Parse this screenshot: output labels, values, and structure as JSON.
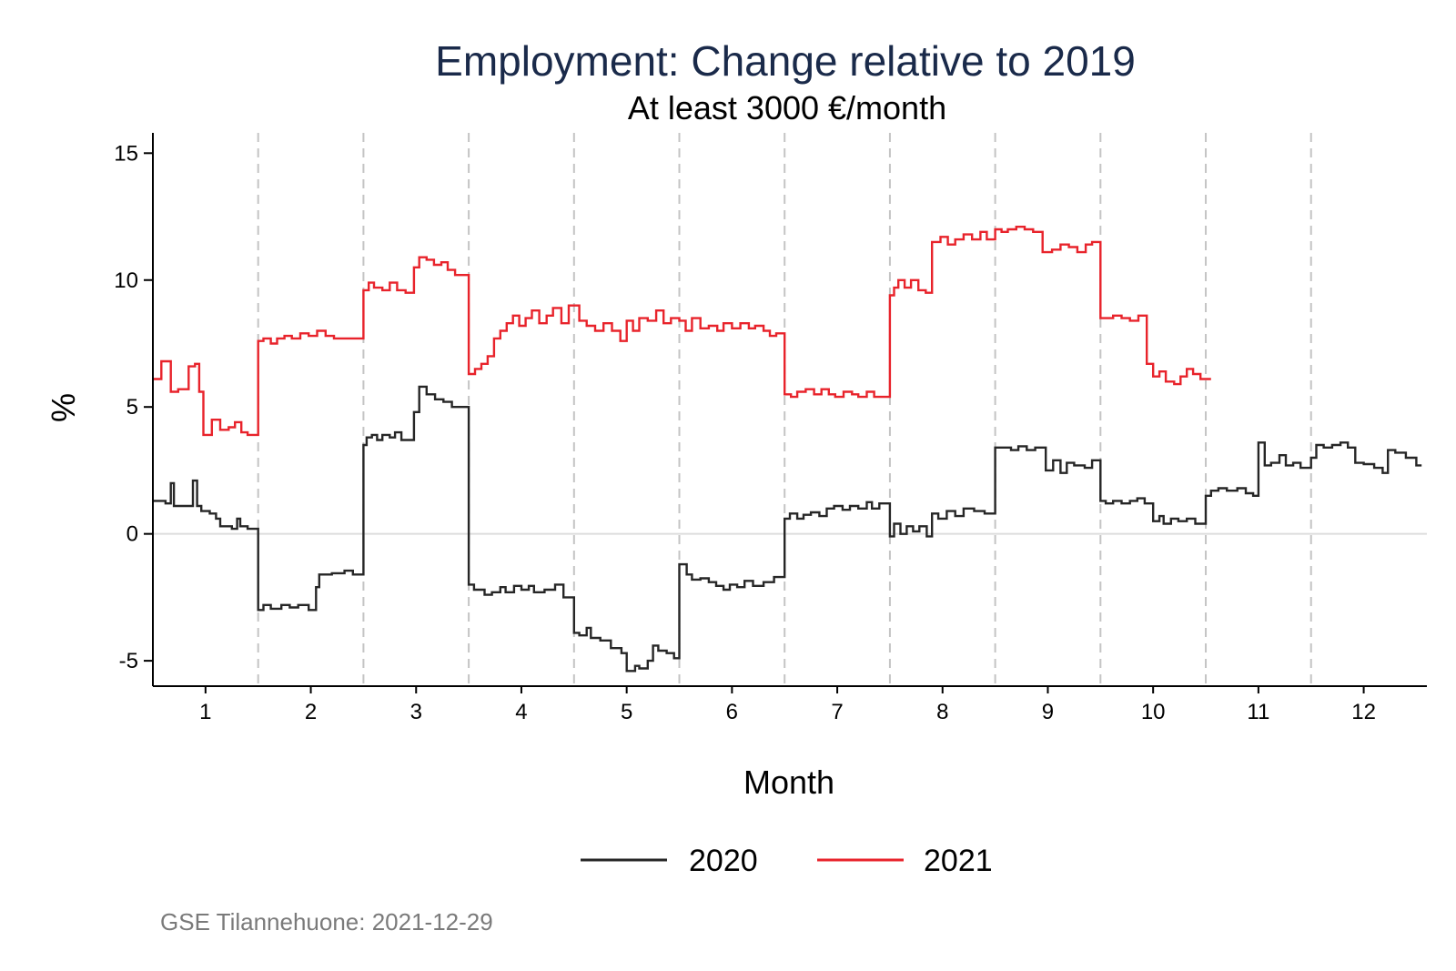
{
  "chart_data": {
    "type": "line",
    "title": "Employment: Change relative to 2019",
    "subtitle": "At least 3000 €/month",
    "xlabel": "Month",
    "ylabel": "%",
    "xlim": [
      0.5,
      12.6
    ],
    "ylim": [
      -6,
      15.8
    ],
    "x_ticks": [
      1,
      2,
      3,
      4,
      5,
      6,
      7,
      8,
      9,
      10,
      11,
      12
    ],
    "y_ticks": [
      15,
      10,
      5,
      0,
      -5
    ],
    "y_tick_labels": [
      "15",
      "10",
      "5",
      "0",
      "-5"
    ],
    "month_separators": [
      1.5,
      2.5,
      3.5,
      4.5,
      5.5,
      6.5,
      7.5,
      8.5,
      9.5,
      10.5,
      11.5
    ],
    "zero_line": 0,
    "legend": {
      "position": "bottom",
      "entries": [
        "2020",
        "2021"
      ]
    },
    "note": "GSE Tilannehuone: 2021-12-29",
    "series": [
      {
        "name": "2020",
        "color": "#262626",
        "step": "post",
        "points": [
          [
            0.5,
            1.3
          ],
          [
            0.62,
            1.2
          ],
          [
            0.67,
            2.0
          ],
          [
            0.7,
            1.1
          ],
          [
            0.8,
            1.1
          ],
          [
            0.88,
            2.1
          ],
          [
            0.92,
            1.1
          ],
          [
            0.96,
            0.9
          ],
          [
            1.04,
            0.8
          ],
          [
            1.1,
            0.6
          ],
          [
            1.14,
            0.3
          ],
          [
            1.25,
            0.2
          ],
          [
            1.3,
            0.6
          ],
          [
            1.33,
            0.3
          ],
          [
            1.4,
            0.2
          ],
          [
            1.5,
            -3.0
          ],
          [
            1.55,
            -2.8
          ],
          [
            1.62,
            -2.95
          ],
          [
            1.72,
            -2.8
          ],
          [
            1.8,
            -2.9
          ],
          [
            1.88,
            -2.8
          ],
          [
            1.98,
            -3.0
          ],
          [
            2.05,
            -2.1
          ],
          [
            2.08,
            -1.6
          ],
          [
            2.2,
            -1.55
          ],
          [
            2.32,
            -1.45
          ],
          [
            2.4,
            -1.6
          ],
          [
            2.5,
            3.5
          ],
          [
            2.53,
            3.8
          ],
          [
            2.58,
            3.9
          ],
          [
            2.63,
            3.7
          ],
          [
            2.68,
            3.9
          ],
          [
            2.75,
            3.8
          ],
          [
            2.8,
            4.0
          ],
          [
            2.86,
            3.7
          ],
          [
            2.98,
            4.8
          ],
          [
            3.03,
            5.8
          ],
          [
            3.1,
            5.5
          ],
          [
            3.18,
            5.3
          ],
          [
            3.26,
            5.2
          ],
          [
            3.34,
            5.0
          ],
          [
            3.5,
            -2.0
          ],
          [
            3.55,
            -2.2
          ],
          [
            3.65,
            -2.4
          ],
          [
            3.72,
            -2.3
          ],
          [
            3.8,
            -2.1
          ],
          [
            3.85,
            -2.3
          ],
          [
            3.93,
            -2.05
          ],
          [
            4.0,
            -2.2
          ],
          [
            4.07,
            -2.05
          ],
          [
            4.12,
            -2.3
          ],
          [
            4.22,
            -2.2
          ],
          [
            4.32,
            -2.0
          ],
          [
            4.4,
            -2.5
          ],
          [
            4.5,
            -3.9
          ],
          [
            4.55,
            -4.0
          ],
          [
            4.62,
            -3.7
          ],
          [
            4.66,
            -4.1
          ],
          [
            4.75,
            -4.2
          ],
          [
            4.85,
            -4.5
          ],
          [
            4.95,
            -4.7
          ],
          [
            5.0,
            -5.4
          ],
          [
            5.08,
            -5.2
          ],
          [
            5.12,
            -5.3
          ],
          [
            5.2,
            -5.0
          ],
          [
            5.25,
            -4.4
          ],
          [
            5.3,
            -4.6
          ],
          [
            5.38,
            -4.7
          ],
          [
            5.45,
            -4.9
          ],
          [
            5.5,
            -1.2
          ],
          [
            5.57,
            -1.6
          ],
          [
            5.62,
            -1.8
          ],
          [
            5.7,
            -1.75
          ],
          [
            5.78,
            -1.9
          ],
          [
            5.85,
            -2.05
          ],
          [
            5.92,
            -2.2
          ],
          [
            5.98,
            -2.0
          ],
          [
            6.05,
            -2.1
          ],
          [
            6.12,
            -1.85
          ],
          [
            6.2,
            -2.05
          ],
          [
            6.3,
            -1.9
          ],
          [
            6.4,
            -1.7
          ],
          [
            6.5,
            0.6
          ],
          [
            6.55,
            0.8
          ],
          [
            6.62,
            0.6
          ],
          [
            6.68,
            0.75
          ],
          [
            6.75,
            0.85
          ],
          [
            6.83,
            0.7
          ],
          [
            6.9,
            1.0
          ],
          [
            6.97,
            1.1
          ],
          [
            7.05,
            0.95
          ],
          [
            7.12,
            1.1
          ],
          [
            7.2,
            1.0
          ],
          [
            7.28,
            1.25
          ],
          [
            7.33,
            1.0
          ],
          [
            7.4,
            1.2
          ],
          [
            7.5,
            -0.1
          ],
          [
            7.54,
            0.4
          ],
          [
            7.6,
            0.0
          ],
          [
            7.66,
            0.3
          ],
          [
            7.72,
            0.1
          ],
          [
            7.78,
            0.3
          ],
          [
            7.85,
            -0.1
          ],
          [
            7.9,
            0.8
          ],
          [
            7.96,
            0.6
          ],
          [
            8.04,
            0.9
          ],
          [
            8.12,
            0.7
          ],
          [
            8.2,
            1.0
          ],
          [
            8.3,
            0.9
          ],
          [
            8.4,
            0.8
          ],
          [
            8.5,
            3.4
          ],
          [
            8.58,
            3.4
          ],
          [
            8.65,
            3.3
          ],
          [
            8.72,
            3.45
          ],
          [
            8.8,
            3.3
          ],
          [
            8.88,
            3.4
          ],
          [
            8.98,
            2.5
          ],
          [
            9.05,
            2.9
          ],
          [
            9.12,
            2.4
          ],
          [
            9.18,
            2.8
          ],
          [
            9.25,
            2.7
          ],
          [
            9.35,
            2.6
          ],
          [
            9.42,
            2.9
          ],
          [
            9.5,
            1.3
          ],
          [
            9.55,
            1.2
          ],
          [
            9.62,
            1.3
          ],
          [
            9.7,
            1.2
          ],
          [
            9.78,
            1.3
          ],
          [
            9.85,
            1.4
          ],
          [
            9.92,
            1.2
          ],
          [
            10.0,
            0.5
          ],
          [
            10.06,
            0.7
          ],
          [
            10.1,
            0.4
          ],
          [
            10.17,
            0.6
          ],
          [
            10.24,
            0.5
          ],
          [
            10.32,
            0.6
          ],
          [
            10.4,
            0.4
          ],
          [
            10.5,
            1.5
          ],
          [
            10.55,
            1.7
          ],
          [
            10.62,
            1.8
          ],
          [
            10.7,
            1.7
          ],
          [
            10.8,
            1.8
          ],
          [
            10.88,
            1.6
          ],
          [
            10.95,
            1.5
          ],
          [
            11.0,
            3.6
          ],
          [
            11.06,
            2.7
          ],
          [
            11.12,
            2.8
          ],
          [
            11.2,
            3.1
          ],
          [
            11.26,
            2.7
          ],
          [
            11.33,
            2.8
          ],
          [
            11.4,
            2.6
          ],
          [
            11.5,
            3.0
          ],
          [
            11.55,
            3.5
          ],
          [
            11.62,
            3.4
          ],
          [
            11.7,
            3.5
          ],
          [
            11.78,
            3.6
          ],
          [
            11.85,
            3.4
          ],
          [
            11.92,
            2.8
          ],
          [
            12.0,
            2.75
          ],
          [
            12.1,
            2.6
          ],
          [
            12.18,
            2.4
          ],
          [
            12.23,
            3.3
          ],
          [
            12.3,
            3.2
          ],
          [
            12.4,
            3.0
          ],
          [
            12.5,
            2.7
          ]
        ]
      },
      {
        "name": "2021",
        "color": "#e8232b",
        "step": "post",
        "points": [
          [
            0.5,
            6.1
          ],
          [
            0.58,
            6.8
          ],
          [
            0.67,
            5.6
          ],
          [
            0.74,
            5.7
          ],
          [
            0.84,
            6.6
          ],
          [
            0.9,
            6.7
          ],
          [
            0.94,
            5.6
          ],
          [
            0.98,
            3.9
          ],
          [
            1.06,
            4.5
          ],
          [
            1.14,
            4.1
          ],
          [
            1.22,
            4.2
          ],
          [
            1.28,
            4.4
          ],
          [
            1.34,
            4.0
          ],
          [
            1.4,
            3.9
          ],
          [
            1.5,
            7.6
          ],
          [
            1.55,
            7.7
          ],
          [
            1.62,
            7.5
          ],
          [
            1.68,
            7.7
          ],
          [
            1.75,
            7.8
          ],
          [
            1.82,
            7.7
          ],
          [
            1.9,
            7.9
          ],
          [
            1.98,
            7.8
          ],
          [
            2.06,
            8.0
          ],
          [
            2.14,
            7.8
          ],
          [
            2.22,
            7.7
          ],
          [
            2.4,
            7.7
          ],
          [
            2.5,
            9.6
          ],
          [
            2.55,
            9.9
          ],
          [
            2.6,
            9.7
          ],
          [
            2.68,
            9.6
          ],
          [
            2.75,
            9.9
          ],
          [
            2.82,
            9.6
          ],
          [
            2.9,
            9.5
          ],
          [
            2.98,
            10.5
          ],
          [
            3.03,
            10.9
          ],
          [
            3.1,
            10.8
          ],
          [
            3.17,
            10.6
          ],
          [
            3.24,
            10.7
          ],
          [
            3.3,
            10.4
          ],
          [
            3.37,
            10.2
          ],
          [
            3.42,
            10.2
          ],
          [
            3.5,
            6.3
          ],
          [
            3.56,
            6.5
          ],
          [
            3.62,
            6.7
          ],
          [
            3.68,
            7.0
          ],
          [
            3.74,
            7.7
          ],
          [
            3.8,
            8.0
          ],
          [
            3.86,
            8.3
          ],
          [
            3.92,
            8.6
          ],
          [
            3.98,
            8.2
          ],
          [
            4.04,
            8.5
          ],
          [
            4.1,
            8.8
          ],
          [
            4.17,
            8.3
          ],
          [
            4.24,
            8.6
          ],
          [
            4.3,
            8.9
          ],
          [
            4.38,
            8.3
          ],
          [
            4.45,
            9.0
          ],
          [
            4.55,
            8.4
          ],
          [
            4.62,
            8.2
          ],
          [
            4.7,
            8.0
          ],
          [
            4.78,
            8.3
          ],
          [
            4.86,
            8.0
          ],
          [
            4.94,
            7.6
          ],
          [
            5.0,
            8.4
          ],
          [
            5.06,
            8.0
          ],
          [
            5.12,
            8.5
          ],
          [
            5.2,
            8.4
          ],
          [
            5.28,
            8.8
          ],
          [
            5.35,
            8.3
          ],
          [
            5.42,
            8.5
          ],
          [
            5.5,
            8.4
          ],
          [
            5.56,
            8.0
          ],
          [
            5.62,
            8.5
          ],
          [
            5.7,
            8.1
          ],
          [
            5.78,
            8.2
          ],
          [
            5.86,
            8.0
          ],
          [
            5.92,
            8.3
          ],
          [
            6.0,
            8.1
          ],
          [
            6.08,
            8.3
          ],
          [
            6.16,
            8.1
          ],
          [
            6.22,
            8.2
          ],
          [
            6.3,
            8.0
          ],
          [
            6.36,
            7.8
          ],
          [
            6.42,
            7.9
          ],
          [
            6.5,
            5.5
          ],
          [
            6.56,
            5.4
          ],
          [
            6.62,
            5.6
          ],
          [
            6.7,
            5.7
          ],
          [
            6.78,
            5.5
          ],
          [
            6.85,
            5.7
          ],
          [
            6.92,
            5.5
          ],
          [
            6.98,
            5.4
          ],
          [
            7.06,
            5.6
          ],
          [
            7.14,
            5.5
          ],
          [
            7.2,
            5.4
          ],
          [
            7.28,
            5.6
          ],
          [
            7.35,
            5.4
          ],
          [
            7.5,
            9.4
          ],
          [
            7.54,
            9.7
          ],
          [
            7.58,
            10.0
          ],
          [
            7.64,
            9.7
          ],
          [
            7.7,
            10.0
          ],
          [
            7.77,
            9.6
          ],
          [
            7.84,
            9.5
          ],
          [
            7.9,
            11.5
          ],
          [
            7.98,
            11.7
          ],
          [
            8.05,
            11.4
          ],
          [
            8.12,
            11.6
          ],
          [
            8.2,
            11.8
          ],
          [
            8.28,
            11.6
          ],
          [
            8.36,
            11.9
          ],
          [
            8.42,
            11.6
          ],
          [
            8.5,
            12.0
          ],
          [
            8.56,
            11.9
          ],
          [
            8.62,
            12.0
          ],
          [
            8.7,
            12.1
          ],
          [
            8.78,
            12.0
          ],
          [
            8.86,
            11.9
          ],
          [
            8.95,
            11.1
          ],
          [
            9.04,
            11.2
          ],
          [
            9.12,
            11.4
          ],
          [
            9.2,
            11.3
          ],
          [
            9.28,
            11.1
          ],
          [
            9.36,
            11.4
          ],
          [
            9.42,
            11.5
          ],
          [
            9.5,
            8.5
          ],
          [
            9.56,
            8.5
          ],
          [
            9.62,
            8.6
          ],
          [
            9.7,
            8.5
          ],
          [
            9.78,
            8.4
          ],
          [
            9.86,
            8.6
          ],
          [
            9.94,
            6.7
          ],
          [
            10.0,
            6.2
          ],
          [
            10.06,
            6.4
          ],
          [
            10.12,
            6.0
          ],
          [
            10.2,
            5.9
          ],
          [
            10.26,
            6.2
          ],
          [
            10.32,
            6.5
          ],
          [
            10.38,
            6.3
          ],
          [
            10.45,
            6.1
          ],
          [
            10.5,
            6.1
          ]
        ]
      }
    ]
  }
}
